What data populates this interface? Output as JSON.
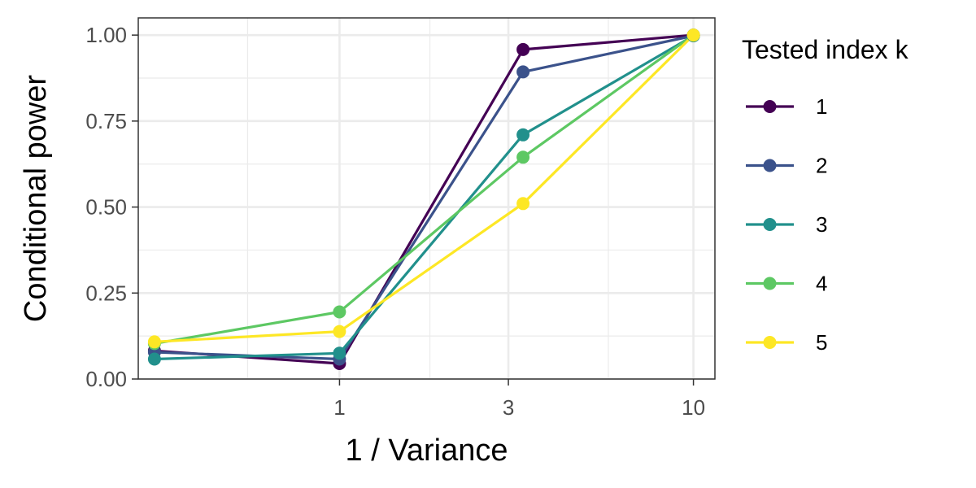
{
  "chart_data": {
    "type": "line",
    "xlabel": "1 / Variance",
    "ylabel": "Conditional power",
    "x_scale": "log10",
    "x": [
      0.3,
      1,
      3.3,
      10
    ],
    "xlim": [
      0.27,
      11.5
    ],
    "x_ticks": [
      1,
      3,
      10
    ],
    "x_tick_labels": [
      "1",
      "3",
      "10"
    ],
    "x_minor_ticks": [
      0.55,
      1.8,
      5.75
    ],
    "ylim": [
      0,
      1.05
    ],
    "y_ticks": [
      0,
      0.25,
      0.5,
      0.75,
      1.0
    ],
    "y_tick_labels": [
      "0.00",
      "0.25",
      "0.50",
      "0.75",
      "1.00"
    ],
    "y_minor_ticks": [
      0.125,
      0.375,
      0.625,
      0.875
    ],
    "grid": true,
    "legend": {
      "title": "Tested index k",
      "position": "right"
    },
    "series": [
      {
        "name": "1",
        "color": "#440154",
        "values": [
          0.082,
          0.045,
          0.958,
          1.0
        ]
      },
      {
        "name": "2",
        "color": "#3B528B",
        "values": [
          0.078,
          0.058,
          0.893,
          0.998
        ]
      },
      {
        "name": "3",
        "color": "#21908C",
        "values": [
          0.058,
          0.075,
          0.71,
          0.998
        ]
      },
      {
        "name": "4",
        "color": "#5DC863",
        "values": [
          0.103,
          0.195,
          0.645,
          1.0
        ]
      },
      {
        "name": "5",
        "color": "#FDE725",
        "values": [
          0.108,
          0.138,
          0.51,
          1.0
        ]
      }
    ]
  }
}
